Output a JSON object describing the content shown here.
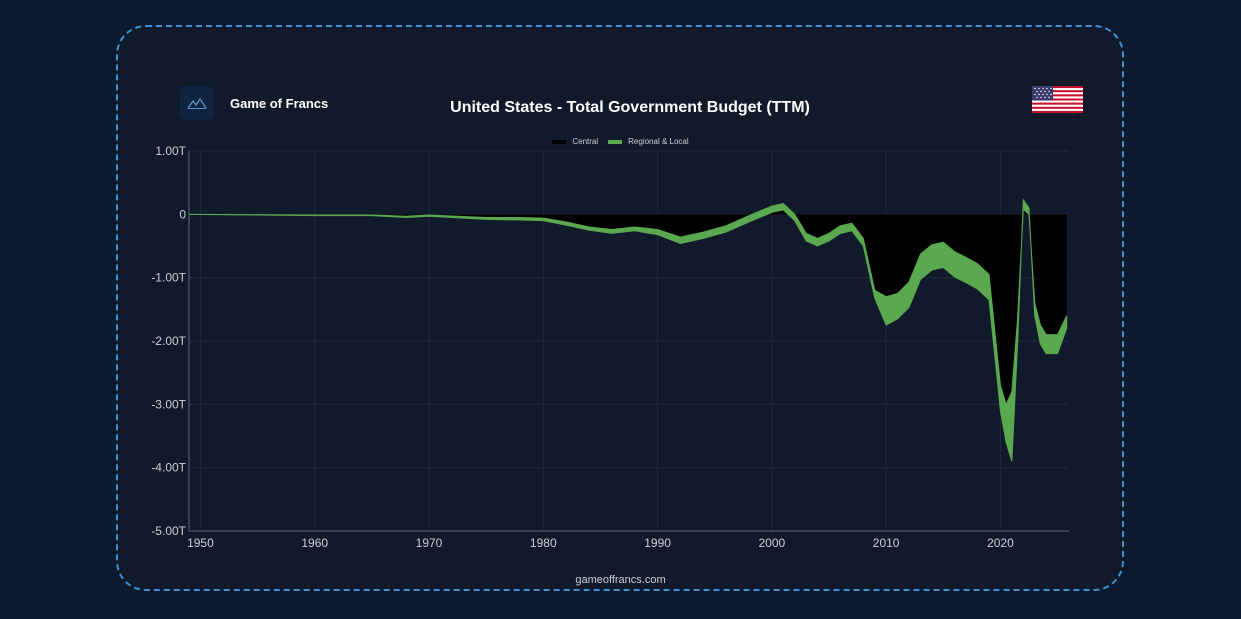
{
  "brand": {
    "name": "Game of Francs",
    "logo_icon": "mountain-logo-icon",
    "url": "gameoffrancs.com"
  },
  "flag_icon": "us-flag-icon",
  "colors": {
    "background": "#0b1a2e",
    "card": "#111a2b",
    "border": "#3d8fd1",
    "central": "#000000",
    "regional": "#5aa84f",
    "grid": "#1f2a3d",
    "axis_text": "#c9cfd8"
  },
  "chart_data": {
    "type": "area",
    "title": "United States - Total Government Budget (TTM)",
    "xlabel": "",
    "ylabel": "",
    "xlim": [
      1949,
      2026
    ],
    "ylim": [
      -5.0,
      1.0
    ],
    "x_ticks": [
      1950,
      1960,
      1970,
      1980,
      1990,
      2000,
      2010,
      2020
    ],
    "x_tick_labels": [
      "1950",
      "1960",
      "1970",
      "1980",
      "1990",
      "2000",
      "2010",
      "2020"
    ],
    "y_ticks": [
      1.0,
      0,
      -1.0,
      -2.0,
      -3.0,
      -4.0,
      -5.0
    ],
    "y_tick_labels": [
      "1.00T",
      "0",
      "-1.00T",
      "-2.00T",
      "-3.00T",
      "-4.00T",
      "-5.00T"
    ],
    "grid": true,
    "legend_position": "top-center",
    "stacked": true,
    "series": [
      {
        "name": "Central",
        "x": [
          1949,
          1955,
          1960,
          1965,
          1968,
          1970,
          1975,
          1978,
          1980,
          1982,
          1984,
          1986,
          1988,
          1990,
          1992,
          1994,
          1996,
          1998,
          2000,
          2001,
          2002,
          2003,
          2004,
          2005,
          2006,
          2007,
          2008,
          2009,
          2010,
          2011,
          2012,
          2013,
          2014,
          2015,
          2016,
          2017,
          2018,
          2019,
          2020,
          2020.5,
          2021,
          2021.5,
          2022,
          2022.5,
          2023,
          2023.5,
          2024,
          2025,
          2025.8
        ],
        "values": [
          0.0,
          -0.005,
          -0.01,
          -0.01,
          -0.03,
          -0.01,
          -0.05,
          -0.05,
          -0.06,
          -0.12,
          -0.2,
          -0.24,
          -0.2,
          -0.24,
          -0.36,
          -0.28,
          -0.18,
          -0.02,
          0.13,
          0.17,
          0.0,
          -0.3,
          -0.38,
          -0.3,
          -0.18,
          -0.14,
          -0.38,
          -1.2,
          -1.3,
          -1.25,
          -1.07,
          -0.63,
          -0.48,
          -0.44,
          -0.59,
          -0.68,
          -0.78,
          -0.95,
          -2.7,
          -3.0,
          -2.8,
          -1.65,
          0.08,
          0.0,
          -1.4,
          -1.75,
          -1.9,
          -1.9,
          -1.6
        ],
        "note_hidden": ""
      },
      {
        "name": "Regional & Local",
        "x": [
          1949,
          1955,
          1960,
          1965,
          1968,
          1970,
          1975,
          1978,
          1980,
          1982,
          1984,
          1986,
          1988,
          1990,
          1992,
          1994,
          1996,
          1998,
          2000,
          2001,
          2002,
          2003,
          2004,
          2005,
          2006,
          2007,
          2008,
          2009,
          2010,
          2011,
          2012,
          2013,
          2014,
          2015,
          2016,
          2017,
          2018,
          2019,
          2020,
          2020.5,
          2021,
          2021.5,
          2022,
          2022.5,
          2023,
          2023.5,
          2024,
          2025,
          2025.8
        ],
        "values": [
          0.0,
          -0.005,
          -0.01,
          -0.01,
          -0.02,
          -0.02,
          -0.03,
          -0.04,
          -0.04,
          -0.05,
          -0.05,
          -0.06,
          -0.06,
          -0.08,
          -0.1,
          -0.1,
          -0.1,
          -0.1,
          -0.1,
          -0.1,
          -0.1,
          -0.12,
          -0.12,
          -0.12,
          -0.12,
          -0.12,
          -0.12,
          -0.12,
          -0.45,
          -0.4,
          -0.4,
          -0.4,
          -0.4,
          -0.4,
          -0.4,
          -0.4,
          -0.4,
          -0.4,
          -0.4,
          -0.6,
          -1.1,
          -0.4,
          0.15,
          0.1,
          -0.2,
          -0.3,
          -0.3,
          -0.3,
          -0.2
        ]
      }
    ]
  }
}
